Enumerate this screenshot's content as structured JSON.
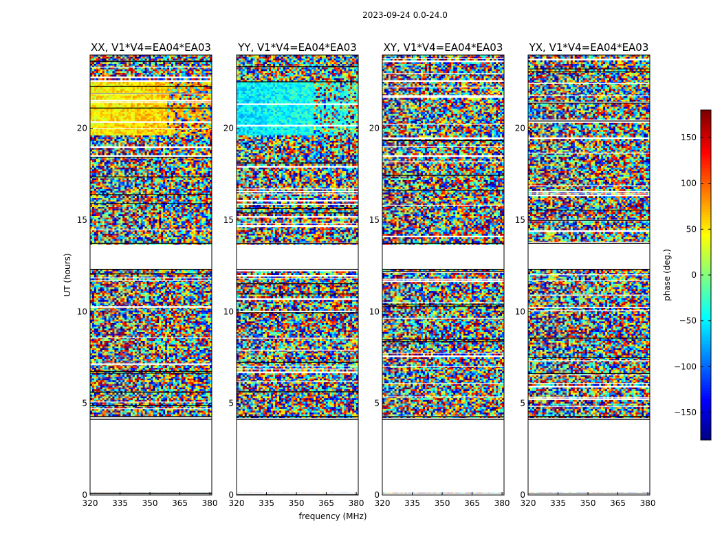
{
  "chart_data": {
    "type": "heatmap",
    "suptitle": "2023-09-24 0.0-24.0",
    "xlabel": "frequency (MHz)",
    "ylabel": "UT (hours)",
    "xlim": [
      320,
      381
    ],
    "ylim": [
      0,
      24
    ],
    "xticks": [
      320,
      335,
      350,
      365,
      380
    ],
    "yticks": [
      0,
      5,
      10,
      15,
      20
    ],
    "panels": [
      {
        "title": "XX, V1*V4=EA04*EA03",
        "coherent_phase_deg": 60,
        "coherent_hours": [
          19.7,
          22.6
        ]
      },
      {
        "title": "YY, V1*V4=EA04*EA03",
        "coherent_phase_deg": -40,
        "coherent_hours": [
          19.7,
          22.6
        ]
      },
      {
        "title": "XY, V1*V4=EA04*EA03",
        "coherent_phase_deg": null,
        "coherent_hours": null
      },
      {
        "title": "YX, V1*V4=EA04*EA03",
        "coherent_phase_deg": null,
        "coherent_hours": null
      }
    ],
    "data_hours": [
      [
        0.0,
        0.12
      ],
      [
        4.3,
        12.3
      ],
      [
        13.75,
        24.0
      ]
    ],
    "blank_hours": [
      [
        4.12,
        4.3
      ],
      [
        12.3,
        13.75
      ]
    ],
    "colorbar": {
      "label": "phase (deg.)",
      "range": [
        -180,
        180
      ],
      "ticks": [
        150,
        100,
        50,
        0,
        -50,
        -100,
        -150
      ],
      "tick_labels": [
        "150",
        "100",
        "50",
        "0",
        "−50",
        "−100",
        "−150"
      ],
      "colormap": "jet"
    }
  }
}
